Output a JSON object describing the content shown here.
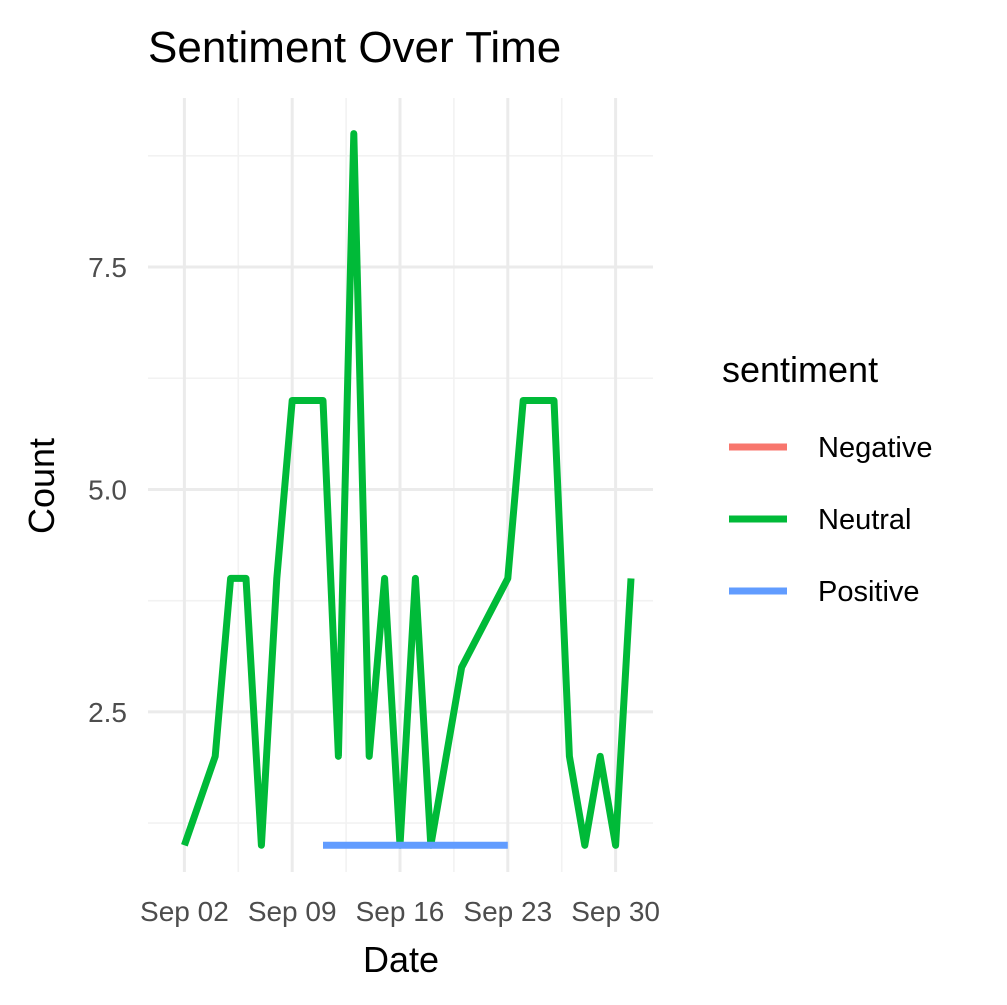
{
  "chart_data": {
    "type": "line",
    "title": "Sentiment Over Time",
    "xlabel": "Date",
    "ylabel": "Count",
    "xlim": [
      "2024-09-01",
      "2024-10-01"
    ],
    "ylim": [
      0.7,
      9.4
    ],
    "x_ticks": [
      {
        "date": "2024-09-02",
        "label": "Sep 02"
      },
      {
        "date": "2024-09-09",
        "label": "Sep 09"
      },
      {
        "date": "2024-09-16",
        "label": "Sep 16"
      },
      {
        "date": "2024-09-23",
        "label": "Sep 23"
      },
      {
        "date": "2024-09-30",
        "label": "Sep 30"
      }
    ],
    "y_ticks": [
      {
        "value": 2.5,
        "label": "2.5"
      },
      {
        "value": 5.0,
        "label": "5.0"
      },
      {
        "value": 7.5,
        "label": "7.5"
      }
    ],
    "grid": true,
    "legend": {
      "title": "sentiment",
      "position": "right",
      "entries": [
        {
          "name": "Negative",
          "color": "#F8766D"
        },
        {
          "name": "Neutral",
          "color": "#00BA38"
        },
        {
          "name": "Positive",
          "color": "#619CFF"
        }
      ]
    },
    "series": [
      {
        "name": "Negative",
        "color": "#F8766D",
        "points": []
      },
      {
        "name": "Neutral",
        "color": "#00BA38",
        "points": [
          {
            "x": "2024-09-02",
            "y": 1
          },
          {
            "x": "2024-09-04",
            "y": 2
          },
          {
            "x": "2024-09-05",
            "y": 4
          },
          {
            "x": "2024-09-06",
            "y": 4
          },
          {
            "x": "2024-09-07",
            "y": 1
          },
          {
            "x": "2024-09-08",
            "y": 4
          },
          {
            "x": "2024-09-09",
            "y": 6
          },
          {
            "x": "2024-09-11",
            "y": 6
          },
          {
            "x": "2024-09-12",
            "y": 2
          },
          {
            "x": "2024-09-13",
            "y": 9
          },
          {
            "x": "2024-09-14",
            "y": 2
          },
          {
            "x": "2024-09-15",
            "y": 4
          },
          {
            "x": "2024-09-16",
            "y": 1
          },
          {
            "x": "2024-09-17",
            "y": 4
          },
          {
            "x": "2024-09-18",
            "y": 1
          },
          {
            "x": "2024-09-20",
            "y": 3
          },
          {
            "x": "2024-09-23",
            "y": 4
          },
          {
            "x": "2024-09-24",
            "y": 6
          },
          {
            "x": "2024-09-26",
            "y": 6
          },
          {
            "x": "2024-09-27",
            "y": 2
          },
          {
            "x": "2024-09-28",
            "y": 1
          },
          {
            "x": "2024-09-29",
            "y": 2
          },
          {
            "x": "2024-09-30",
            "y": 1
          },
          {
            "x": "2024-10-01",
            "y": 4
          }
        ]
      },
      {
        "name": "Positive",
        "color": "#619CFF",
        "points": [
          {
            "x": "2024-09-11",
            "y": 1
          },
          {
            "x": "2024-09-23",
            "y": 1
          }
        ]
      }
    ]
  }
}
